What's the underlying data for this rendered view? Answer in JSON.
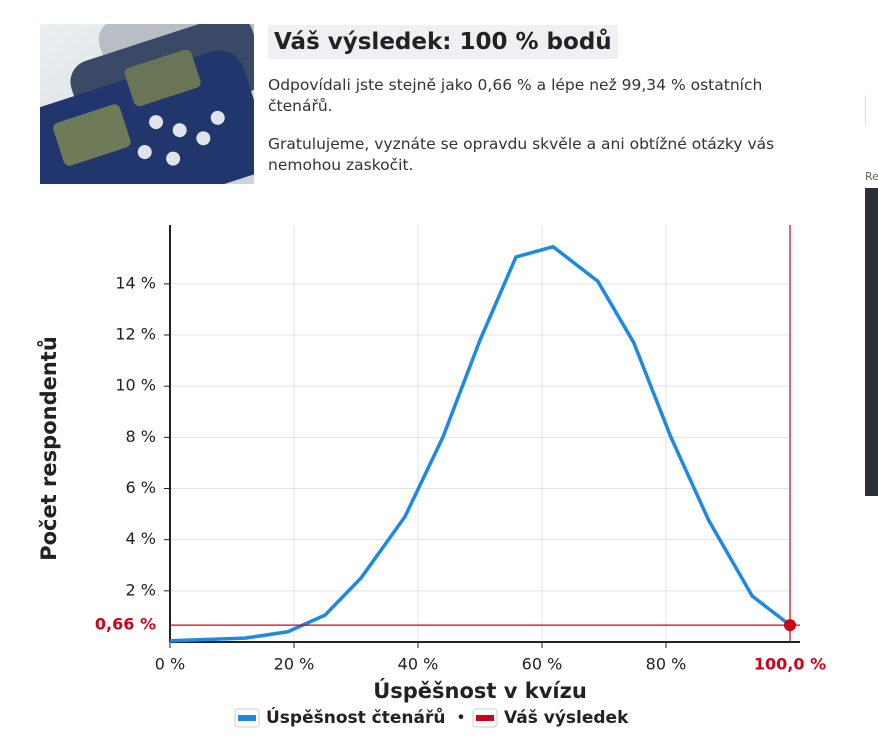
{
  "header": {
    "title": "Váš výsledek: 100 % bodů",
    "paragraphs": [
      "Odpovídali jste stejně jako 0,66 % a lépe než 99,34 % ostatních čtenářů.",
      "Gratulujeme, vyznáte se opravdu skvěle a ani obtížné otázky vás nemohou zaskočit."
    ]
  },
  "sidebar": {
    "label": "Re"
  },
  "chart_data": {
    "type": "line",
    "xlabel": "Úspěšnost v kvízu",
    "ylabel": "Počet respondentů",
    "xlim": [
      0,
      100
    ],
    "ylim": [
      0,
      16.3
    ],
    "xticks": [
      {
        "value": 0,
        "label": "0 %"
      },
      {
        "value": 20,
        "label": "20 %"
      },
      {
        "value": 40,
        "label": "40 %"
      },
      {
        "value": 60,
        "label": "60 %"
      },
      {
        "value": 80,
        "label": "80 %"
      }
    ],
    "yticks": [
      {
        "value": 2,
        "label": "2 %"
      },
      {
        "value": 4,
        "label": "4 %"
      },
      {
        "value": 6,
        "label": "6 %"
      },
      {
        "value": 8,
        "label": "8 %"
      },
      {
        "value": 10,
        "label": "10 %"
      },
      {
        "value": 12,
        "label": "12 %"
      },
      {
        "value": 14,
        "label": "14 %"
      }
    ],
    "grid": true,
    "series": [
      {
        "name": "Úspěšnost čtenářů",
        "color": "#1e88e5",
        "x": [
          0,
          12.1,
          19,
          25,
          30.8,
          37.9,
          44,
          50,
          55.8,
          61.8,
          69,
          74.8,
          80.8,
          86.9,
          93.9,
          100
        ],
        "values": [
          0.05,
          0.15,
          0.4,
          1.05,
          2.5,
          4.9,
          8,
          11.8,
          15.05,
          15.45,
          14.1,
          11.7,
          8,
          4.75,
          1.8,
          0.66
        ]
      },
      {
        "name": "Váš výsledek",
        "color": "#d0021b",
        "x": [
          100
        ],
        "values": [
          0.66
        ],
        "x_label": {
          "value": 100,
          "label": "100,0 %"
        },
        "y_label": {
          "value": 0.66,
          "label": "0,66 %"
        }
      }
    ],
    "legend_separator": "•"
  }
}
